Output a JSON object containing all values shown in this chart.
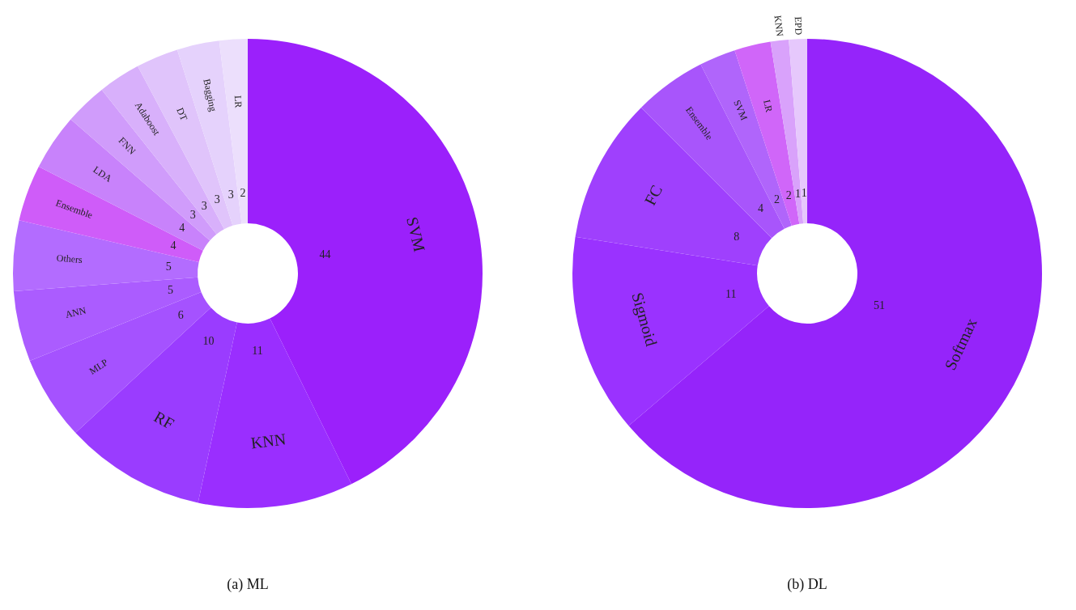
{
  "chart_data": [
    {
      "type": "donut",
      "title": "(a) ML",
      "data_labels": true,
      "categories": [
        "SVM",
        "KNN",
        "RF",
        "MLP",
        "ANN",
        "Others",
        "Ensemble",
        "LDA",
        "FNN",
        "Adaboost",
        "DT",
        "Bagging",
        "LR"
      ],
      "values": [
        44,
        11,
        10,
        6,
        5,
        5,
        4,
        4,
        3,
        3,
        3,
        3,
        2
      ],
      "colors": [
        "#9b20fb",
        "#9a2eff",
        "#9a3cff",
        "#a552ff",
        "#ab5cff",
        "#b36cff",
        "#cf5cf9",
        "#c882fb",
        "#d09cfb",
        "#d8b0fb",
        "#e0c4fb",
        "#e5d2fc",
        "#ecdffc"
      ]
    },
    {
      "type": "donut",
      "title": "(b) DL",
      "data_labels": true,
      "categories": [
        "Softmax",
        "Sigmoid",
        "FC",
        "Ensemble",
        "SVM",
        "LR",
        "KNN",
        "EPD"
      ],
      "values": [
        51,
        11,
        8,
        4,
        2,
        2,
        1,
        1
      ],
      "colors": [
        "#9524fa",
        "#9a32ff",
        "#9f40fd",
        "#a855fb",
        "#b065fb",
        "#d066f9",
        "#d9a2fb",
        "#e6c8fc"
      ]
    }
  ]
}
